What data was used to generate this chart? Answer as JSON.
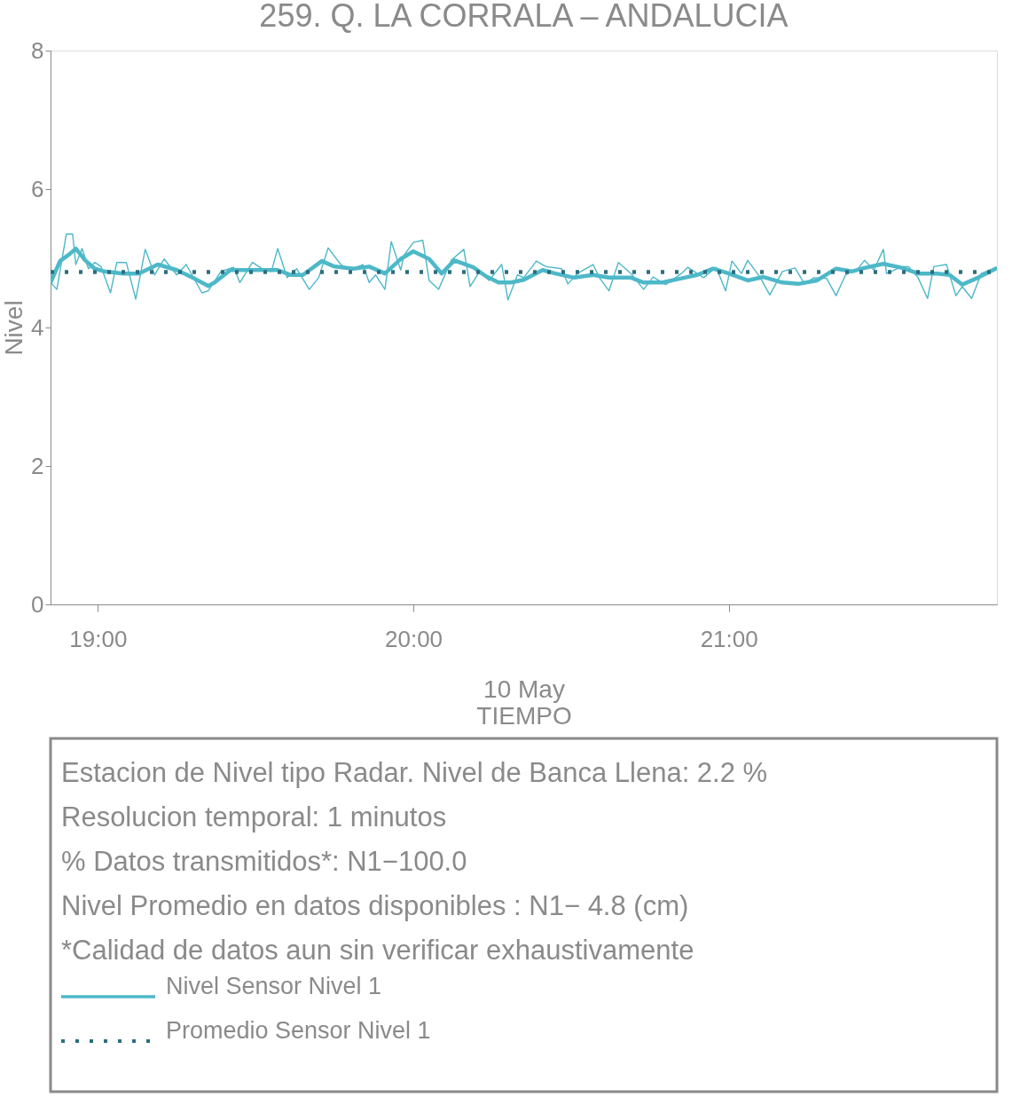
{
  "chart_data": {
    "type": "line",
    "title": "259. Q. LA CORRALA – ANDALUCIA",
    "xlabel": "TIEMPO",
    "ylabel": "Nivel",
    "xlim": [
      18.85,
      21.85
    ],
    "ylim": [
      0,
      8
    ],
    "xticks": [
      {
        "value": 19,
        "label": "19:00"
      },
      {
        "value": 20,
        "label": "20:00"
      },
      {
        "value": 21,
        "label": "21:00"
      }
    ],
    "yticks": [
      0,
      2,
      4,
      6,
      8
    ],
    "grid": false,
    "legend": "bottom",
    "line_style": "solid",
    "marker": "none",
    "annotations": [
      "10 May",
      "Estacion de Nivel tipo Radar. Nivel de Banca Llena:  2.2 %",
      "Resolucion temporal: 1 minutos",
      "% Datos transmitidos*: N1−100.0",
      "Nivel Promedio en datos disponibles : N1−  4.8 (cm)",
      "*Calidad de datos aun sin verificar exhaustivamente"
    ],
    "series": [
      {
        "name": "Nivel Sensor Nivel 1",
        "color": "#4db8c8",
        "x": [
          18.85,
          18.87,
          18.9,
          18.92,
          18.93,
          18.95,
          18.97,
          18.99,
          19.01,
          19.04,
          19.06,
          19.09,
          19.12,
          19.15,
          19.18,
          19.21,
          19.25,
          19.28,
          19.33,
          19.35,
          19.39,
          19.43,
          19.45,
          19.49,
          19.52,
          19.55,
          19.57,
          19.6,
          19.63,
          19.67,
          19.7,
          19.73,
          19.77,
          19.8,
          19.84,
          19.86,
          19.88,
          19.91,
          19.93,
          19.96,
          19.97,
          20.0,
          20.03,
          20.05,
          20.08,
          20.12,
          20.16,
          20.18,
          20.21,
          20.24,
          20.28,
          20.3,
          20.33,
          20.35,
          20.39,
          20.42,
          20.47,
          20.49,
          20.52,
          20.57,
          20.59,
          20.62,
          20.65,
          20.69,
          20.73,
          20.76,
          20.8,
          20.85,
          20.87,
          20.92,
          20.96,
          20.99,
          21.01,
          21.04,
          21.06,
          21.1,
          21.13,
          21.17,
          21.21,
          21.24,
          21.27,
          21.31,
          21.34,
          21.37,
          21.41,
          21.43,
          21.46,
          21.49,
          21.5,
          21.55,
          21.57,
          21.6,
          21.63,
          21.65,
          21.69,
          21.72,
          21.74,
          21.77,
          21.8,
          21.85
        ],
        "values": [
          4.65,
          4.55,
          5.35,
          5.35,
          4.91,
          5.14,
          4.85,
          4.94,
          4.88,
          4.5,
          4.94,
          4.94,
          4.41,
          5.13,
          4.76,
          4.99,
          4.76,
          4.91,
          4.5,
          4.53,
          4.81,
          4.87,
          4.65,
          4.94,
          4.85,
          4.81,
          5.14,
          4.72,
          4.85,
          4.55,
          4.72,
          5.15,
          4.91,
          4.83,
          4.91,
          4.65,
          4.76,
          4.55,
          5.24,
          4.83,
          5.04,
          5.23,
          5.26,
          4.68,
          4.55,
          4.97,
          5.13,
          4.59,
          4.81,
          4.68,
          4.91,
          4.4,
          4.76,
          4.72,
          4.96,
          4.88,
          4.85,
          4.63,
          4.78,
          4.91,
          4.72,
          4.53,
          4.94,
          4.78,
          4.55,
          4.73,
          4.62,
          4.78,
          4.87,
          4.72,
          4.87,
          4.53,
          4.96,
          4.78,
          4.97,
          4.72,
          4.47,
          4.81,
          4.86,
          4.63,
          4.72,
          4.71,
          4.46,
          4.76,
          4.85,
          4.97,
          4.83,
          5.13,
          4.78,
          4.88,
          4.88,
          4.72,
          4.42,
          4.88,
          4.91,
          4.46,
          4.59,
          4.42,
          4.78,
          4.87
        ]
      },
      {
        "color": "#4db8c8",
        "x": [
          18.85,
          18.88,
          18.91,
          18.93,
          18.96,
          18.99,
          19.02,
          19.08,
          19.13,
          19.19,
          19.25,
          19.3,
          19.35,
          19.37,
          19.42,
          19.47,
          19.51,
          19.57,
          19.61,
          19.65,
          19.71,
          19.75,
          19.81,
          19.86,
          19.91,
          19.96,
          20.0,
          20.05,
          20.09,
          20.13,
          20.19,
          20.23,
          20.27,
          20.31,
          20.35,
          20.41,
          20.45,
          20.51,
          20.57,
          20.62,
          20.69,
          20.73,
          20.79,
          20.85,
          20.9,
          20.95,
          21.0,
          21.06,
          21.11,
          21.17,
          21.22,
          21.28,
          21.34,
          21.39,
          21.43,
          21.49,
          21.55,
          21.6,
          21.66,
          21.7,
          21.74,
          21.79,
          21.85
        ],
        "values": [
          4.65,
          4.96,
          5.06,
          5.14,
          4.97,
          4.85,
          4.81,
          4.78,
          4.78,
          4.91,
          4.83,
          4.72,
          4.6,
          4.65,
          4.83,
          4.83,
          4.83,
          4.83,
          4.76,
          4.76,
          4.96,
          4.88,
          4.85,
          4.88,
          4.78,
          4.99,
          5.1,
          4.99,
          4.78,
          4.97,
          4.87,
          4.74,
          4.65,
          4.65,
          4.69,
          4.83,
          4.78,
          4.72,
          4.76,
          4.72,
          4.72,
          4.65,
          4.65,
          4.71,
          4.76,
          4.85,
          4.78,
          4.68,
          4.73,
          4.65,
          4.63,
          4.68,
          4.85,
          4.81,
          4.86,
          4.92,
          4.86,
          4.78,
          4.78,
          4.76,
          4.62,
          4.72,
          4.86
        ]
      },
      {
        "name": "Promedio Sensor Nivel 1",
        "color": "#2c6e7f",
        "line_style": "dotted",
        "x": [
          18.85,
          21.85
        ],
        "values": [
          4.8,
          4.8
        ]
      }
    ]
  }
}
